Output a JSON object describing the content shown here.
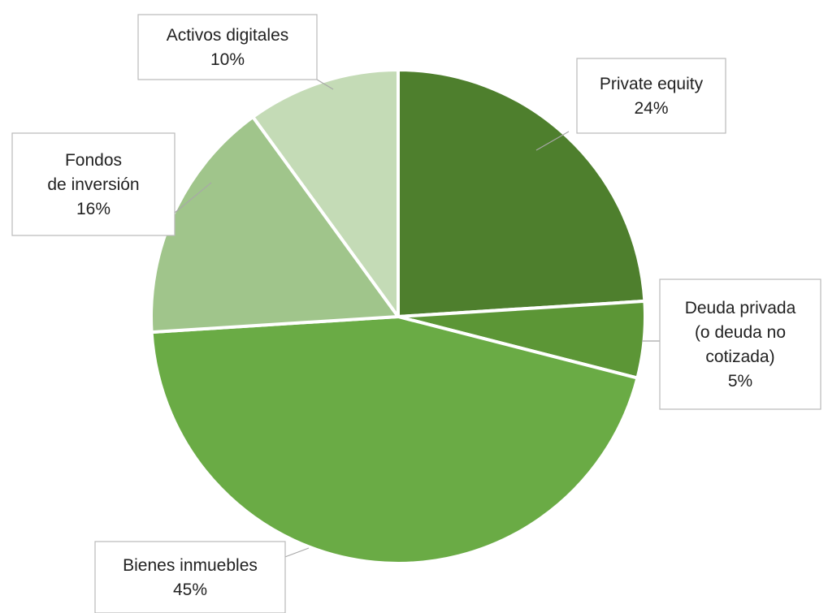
{
  "chart_data": {
    "type": "pie",
    "title": "",
    "start_angle_deg": 0,
    "direction": "clockwise",
    "slices": [
      {
        "label_lines": [
          "Private equity"
        ],
        "pct_text": "24%",
        "value": 24,
        "color": "#4e7f2d"
      },
      {
        "label_lines": [
          "Deuda privada",
          "(o deuda no",
          "cotizada)"
        ],
        "pct_text": "5%",
        "value": 5,
        "color": "#5c9636"
      },
      {
        "label_lines": [
          "Bienes inmuebles"
        ],
        "pct_text": "45%",
        "value": 45,
        "color": "#6aab45"
      },
      {
        "label_lines": [
          "Fondos",
          "de inversión"
        ],
        "pct_text": "16%",
        "value": 16,
        "color": "#a0c58b"
      },
      {
        "label_lines": [
          "Activos digitales"
        ],
        "pct_text": "10%",
        "value": 10,
        "color": "#c4dbb6"
      }
    ],
    "legend": "none",
    "data_labels": "callout"
  }
}
